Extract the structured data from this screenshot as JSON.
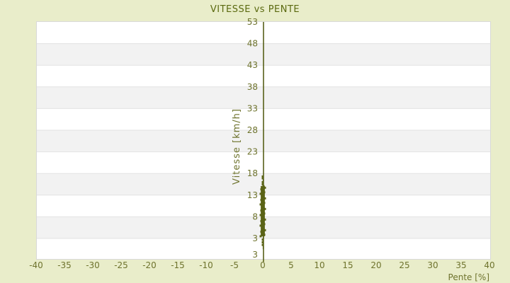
{
  "chart_data": {
    "type": "scatter",
    "title": "VITESSE vs PENTE",
    "xlabel": "Pente [%]",
    "ylabel": "Vitesse [km/h]",
    "xlim": [
      -40,
      40
    ],
    "ylim": [
      -1.74,
      53
    ],
    "x_ticks": [
      -40,
      -35,
      -30,
      -25,
      -20,
      -15,
      -10,
      -5,
      0,
      5,
      10,
      15,
      20,
      25,
      30,
      35,
      40
    ],
    "y_ticks": [
      53,
      48,
      43,
      38,
      33,
      28,
      23,
      18,
      13,
      8,
      3
    ],
    "y_axis_bottom_label": "3",
    "grid": "horizontal-bands",
    "legend": "none",
    "y_axis_position_at_x": 0,
    "series": [
      {
        "name": "vitesse-vs-pente-samples",
        "marker": "square",
        "marker_size_px": 3,
        "dense_strip": {
          "pente": 0,
          "pente_jitter": 0.4,
          "vitesse_min": 3.5,
          "vitesse_max": 15.1
        },
        "sparse_points": [
          {
            "pente": 0,
            "vitesse": 17.3
          },
          {
            "pente": 0,
            "vitesse": 16.9
          },
          {
            "pente": 0,
            "vitesse": 16.0
          },
          {
            "pente": 0,
            "vitesse": 15.5
          },
          {
            "pente": 0,
            "vitesse": 2.7
          },
          {
            "pente": 0,
            "vitesse": 2.1
          },
          {
            "pente": 0,
            "vitesse": 1.5
          }
        ],
        "connecting_line_vitesse_range": [
          0.5,
          17.5
        ]
      }
    ],
    "colors": {
      "page_background": "#e9edca",
      "band_light": "#ffffff",
      "band_dark": "#f2f2f2",
      "band_divider": "#e3e3e3",
      "plot_border": "#d9d9d9",
      "axis_line": "#4d570a",
      "marker": "#5a6316",
      "tick_text": "#6e732d",
      "title_text": "#5a690f"
    }
  }
}
